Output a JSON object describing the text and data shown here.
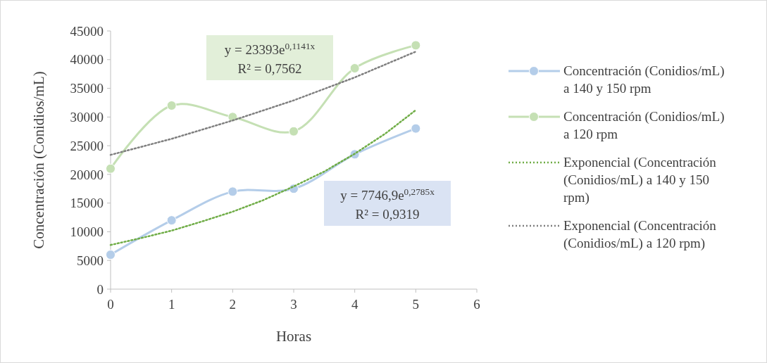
{
  "chart_data": {
    "type": "line",
    "xlabel": "Horas",
    "ylabel": "Concentración (Conidios/mL)",
    "xlim": [
      0,
      6
    ],
    "xticks": [
      0,
      1,
      2,
      3,
      4,
      5,
      6
    ],
    "ylim": [
      0,
      45000
    ],
    "yticks": [
      0,
      5000,
      10000,
      15000,
      20000,
      25000,
      30000,
      35000,
      40000,
      45000
    ],
    "grid": false,
    "legend": "right",
    "marker": "circle",
    "line_style": "solid",
    "series": [
      {
        "name": "Concentración (Conidios/mL) a 140 y 150 rpm",
        "color": "#b4cde9",
        "x": [
          0,
          1,
          2,
          3,
          4,
          5
        ],
        "values": [
          6000,
          12000,
          17000,
          17500,
          23500,
          28000
        ]
      },
      {
        "name": "Concentración (Conidios/mL) a 120 rpm",
        "color": "#c5e0b4",
        "x": [
          0,
          1,
          2,
          3,
          4,
          5
        ],
        "values": [
          21000,
          32000,
          30000,
          27500,
          38500,
          42500
        ]
      },
      {
        "name": "Exponencial (Concentración (Conidios/mL) a 140 y 150 rpm)",
        "color": "#70ad47",
        "marker": "none",
        "line_style": "dotted",
        "x": [
          0,
          0.5,
          1,
          1.5,
          2,
          2.5,
          3,
          3.5,
          4,
          4.5,
          5
        ],
        "values": [
          7700,
          8900,
          10200,
          11800,
          13500,
          15500,
          17900,
          20500,
          23600,
          27100,
          31200
        ]
      },
      {
        "name": "Exponencial (Concentración (Conidios/mL) a 120 rpm)",
        "color": "#7f7f7f",
        "marker": "none",
        "line_style": "dotted",
        "x": [
          0,
          1,
          2,
          3,
          4,
          5
        ],
        "values": [
          23400,
          26200,
          29400,
          32900,
          36900,
          41400
        ]
      }
    ],
    "annotations": [
      "y = 23393e$^{0,1141x}$\nR² = 0,7562",
      "y = 7746,9e$^{0,2785x}$\nR² = 0,9319"
    ]
  }
}
